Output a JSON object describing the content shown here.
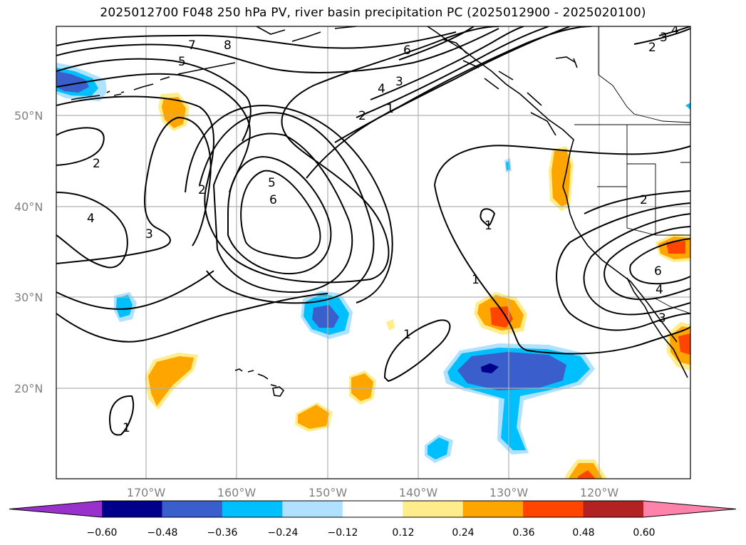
{
  "title": "2025012700 F048 250 hPa PV, river basin precipitation PC (2025012900 - 2025020100)",
  "lat_labels": [
    "50°N",
    "40°N",
    "30°N",
    "20°N"
  ],
  "lon_labels": [
    "170°W",
    "160°W",
    "150°W",
    "140°W",
    "130°W",
    "120°W"
  ],
  "contour_labels": [
    "7",
    "8",
    "5",
    "6",
    "4",
    "3",
    "2",
    "1",
    "2",
    "4",
    "3",
    "2",
    "5",
    "6",
    "1",
    "1",
    "1",
    "2",
    "6",
    "4",
    "3",
    "2",
    "3",
    "4",
    "1"
  ],
  "colorbar": {
    "ticks": [
      "−0.60",
      "−0.48",
      "−0.36",
      "−0.24",
      "−0.12",
      "0.12",
      "0.24",
      "0.36",
      "0.48",
      "0.60"
    ],
    "colors": [
      "#9932cc",
      "#00008b",
      "#3a5fcd",
      "#00bfff",
      "#b0e2ff",
      "#ffffff",
      "#ffec8b",
      "#ffa500",
      "#ff4500",
      "#b22222",
      "#ff82ab"
    ]
  },
  "colors": {
    "land_border": "#000000",
    "grid": "#b0b0b0",
    "tick_text": "#808080"
  }
}
